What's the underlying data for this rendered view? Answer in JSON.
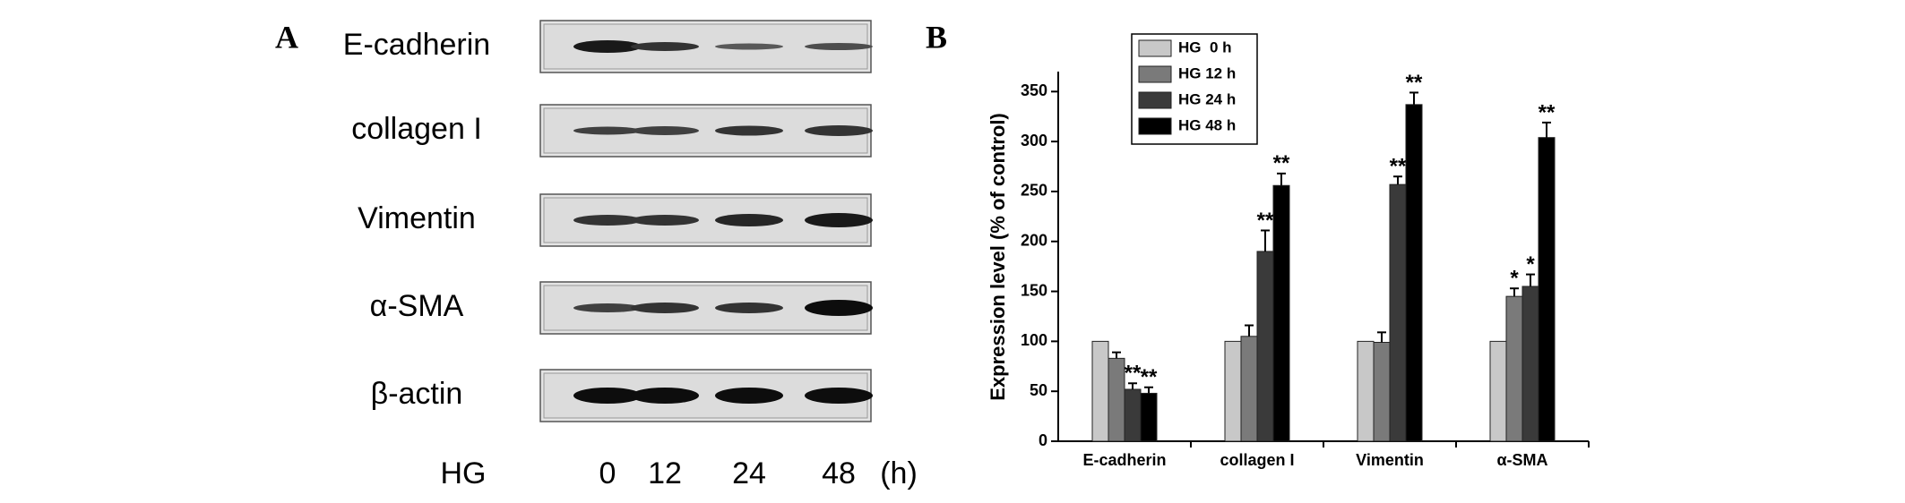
{
  "panel_a": {
    "label": "A",
    "proteins": [
      "E-cadherin",
      "collagen I",
      "Vimentin",
      "α-SMA",
      "β-actin"
    ],
    "treatment_label": "HG",
    "time_points": [
      "0",
      "12",
      "24",
      "48"
    ],
    "unit": "(h)"
  },
  "chart_data": {
    "type": "bar",
    "panel_label": "B",
    "y_label": "Expression level (% of control)",
    "categories": [
      "E-cadherin",
      "collagen I",
      "Vimentin",
      "α-SMA"
    ],
    "series": [
      {
        "name": "HG  0 h",
        "color": "#c8c8c8",
        "values": [
          100,
          100,
          100,
          100
        ],
        "errors": [
          0,
          0,
          0,
          0
        ]
      },
      {
        "name": "HG 12 h",
        "color": "#7a7a7a",
        "values": [
          83,
          105,
          99,
          145
        ],
        "errors": [
          6,
          11,
          10,
          8
        ],
        "significance": [
          null,
          null,
          null,
          "*"
        ]
      },
      {
        "name": "HG 24 h",
        "color": "#3a3a3a",
        "values": [
          52,
          190,
          257,
          155
        ],
        "errors": [
          6,
          21,
          8,
          12
        ],
        "significance": [
          "**",
          "**",
          "**",
          "*"
        ]
      },
      {
        "name": "HG 48 h",
        "color": "#000000",
        "values": [
          48,
          256,
          337,
          304
        ],
        "errors": [
          6,
          12,
          12,
          15
        ],
        "significance": [
          "**",
          "**",
          "**",
          "**"
        ]
      }
    ],
    "ylim": [
      0,
      370
    ],
    "yticks": [
      0,
      50,
      100,
      150,
      200,
      250,
      300,
      350
    ],
    "legend": "top-left"
  }
}
